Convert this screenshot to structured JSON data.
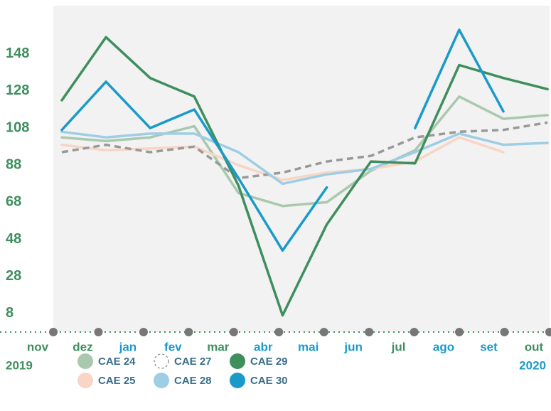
{
  "chart_data": {
    "type": "line",
    "categories": [
      "nov",
      "dez",
      "jan",
      "fev",
      "mar",
      "abr",
      "mai",
      "jun",
      "jul",
      "ago",
      "set",
      "out"
    ],
    "category_colors": [
      "#3e8e5e",
      "#3e8e5e",
      "#1a9ac9",
      "#1a9ac9",
      "#3e8e5e",
      "#1a9ac9",
      "#1a9ac9",
      "#1a9ac9",
      "#3e8e5e",
      "#1a9ac9",
      "#1a9ac9",
      "#3e8e5e"
    ],
    "start_year": "2019",
    "end_year": "2020",
    "ylim": [
      -2,
      174
    ],
    "yticks": [
      8,
      28,
      48,
      68,
      88,
      108,
      128,
      148
    ],
    "series": [
      {
        "name": "CAE 24",
        "color": "#a9c9ae",
        "values": [
          103,
          101,
          103,
          109,
          73,
          66,
          68,
          85,
          96,
          125,
          113,
          115
        ]
      },
      {
        "name": "CAE 25",
        "color": "#f8d5c5",
        "values": [
          99,
          96,
          97,
          98,
          88,
          80,
          84,
          86,
          90,
          103,
          95,
          null
        ]
      },
      {
        "name": "CAE 27",
        "color": "#999999",
        "dashed": true,
        "values": [
          95,
          99,
          95,
          98,
          81,
          84,
          90,
          93,
          103,
          106,
          107,
          111
        ]
      },
      {
        "name": "CAE 28",
        "color": "#9ecde6",
        "values": [
          106,
          103,
          105,
          105,
          95,
          78,
          83,
          86,
          95,
          105,
          99,
          100
        ]
      },
      {
        "name": "CAE 29",
        "color": "#3e8e5e",
        "values": [
          123,
          157,
          135,
          125,
          77,
          7,
          56,
          90,
          89,
          142,
          135,
          129
        ]
      },
      {
        "name": "CAE 30",
        "color": "#1a9ac9",
        "values": [
          107,
          133,
          108,
          118,
          81,
          42,
          76,
          null,
          108,
          161,
          117,
          null
        ]
      }
    ]
  }
}
